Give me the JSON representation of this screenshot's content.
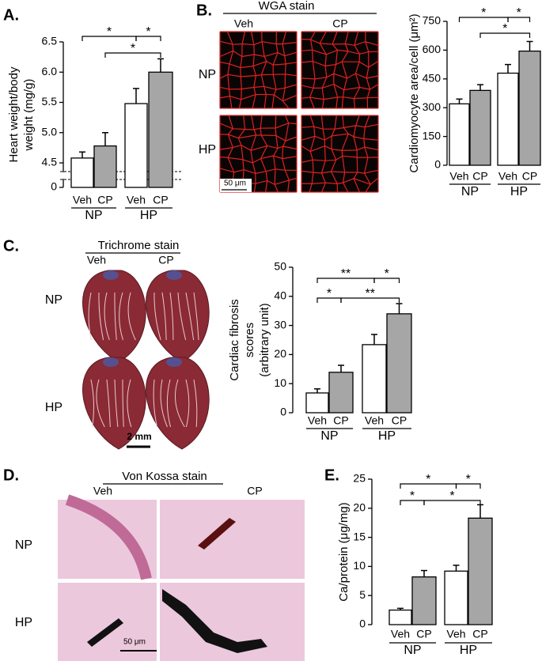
{
  "chart_data": [
    {
      "type": "bar",
      "ylabel": [
        "Heart weight/body",
        "weight (mg/g)"
      ],
      "categories": [
        "Veh",
        "CP",
        "Veh",
        "CP"
      ],
      "groups": [
        "NP",
        "HP"
      ],
      "values": [
        4.58,
        4.78,
        5.48,
        6.0
      ],
      "errors": [
        0.1,
        0.22,
        0.25,
        0.22
      ],
      "colors": [
        "#ffffff",
        "#a6a6a6",
        "#ffffff",
        "#a6a6a6"
      ],
      "ylim": [
        0,
        6.5
      ],
      "ybreak": [
        0,
        4.5
      ],
      "yticks": [
        0,
        4.5,
        {
          "value": 5,
          "label": "5.0"
        },
        5.5,
        {
          "value": 6,
          "label": "6.0"
        },
        6.5
      ],
      "annotations": [
        "*",
        "*",
        "*"
      ]
    },
    {
      "type": "bar",
      "ylabel": [
        "Cardiomyocyte area/cell (μm²)"
      ],
      "categories": [
        "Veh",
        "CP",
        "Veh",
        "CP"
      ],
      "groups": [
        "NP",
        "HP"
      ],
      "values": [
        320,
        390,
        480,
        595
      ],
      "errors": [
        25,
        30,
        45,
        50
      ],
      "colors": [
        "#ffffff",
        "#a6a6a6",
        "#ffffff",
        "#a6a6a6"
      ],
      "ylim": [
        0,
        750
      ],
      "yticks": [
        0,
        150,
        300,
        450,
        600,
        750
      ],
      "annotations": [
        "*",
        "*",
        "*"
      ]
    },
    {
      "type": "bar",
      "ylabel": [
        "Cardiac fibrosis",
        "scores",
        "(arbitrary unit)"
      ],
      "categories": [
        "Veh",
        "CP",
        "Veh",
        "CP"
      ],
      "groups": [
        "NP",
        "HP"
      ],
      "values": [
        6.8,
        13.9,
        23.4,
        34
      ],
      "errors": [
        1.4,
        2.4,
        3.5,
        3.5
      ],
      "colors": [
        "#ffffff",
        "#a6a6a6",
        "#ffffff",
        "#a6a6a6"
      ],
      "ylim": [
        0,
        50
      ],
      "yticks": [
        0,
        10,
        20,
        30,
        40,
        50
      ],
      "annotations": [
        "**",
        "*",
        "*",
        "**"
      ]
    },
    {
      "type": "bar",
      "ylabel": [
        "Ca/protein (μg/mg)"
      ],
      "categories": [
        "Veh",
        "CP",
        "Veh",
        "CP"
      ],
      "groups": [
        "NP",
        "HP"
      ],
      "values": [
        2.5,
        8.2,
        9.2,
        18.3
      ],
      "errors": [
        0.3,
        1.1,
        1,
        2.3
      ],
      "colors": [
        "#ffffff",
        "#a6a6a6",
        "#ffffff",
        "#a6a6a6"
      ],
      "ylim": [
        0,
        25
      ],
      "yticks": [
        0,
        5,
        10,
        15,
        20,
        25
      ],
      "annotations": [
        "*",
        "*",
        "*",
        "*"
      ]
    }
  ],
  "panels": {
    "letters": [
      "A.",
      "B.",
      "C.",
      "D.",
      "E."
    ],
    "wga": {
      "title": "WGA stain",
      "columns": [
        "Veh",
        "CP"
      ],
      "rows": [
        "NP",
        "HP"
      ],
      "scale_bar": "50 μm"
    },
    "trichrome": {
      "title": "Trichrome stain",
      "columns": [
        "Veh",
        "CP"
      ],
      "rows": [
        "NP",
        "HP"
      ],
      "scale_bar": "2 mm"
    },
    "von_kossa": {
      "title": "Von Kossa stain",
      "columns": [
        "Veh",
        "CP"
      ],
      "rows": [
        "NP",
        "HP"
      ],
      "scale_bar": "50 μm"
    }
  }
}
